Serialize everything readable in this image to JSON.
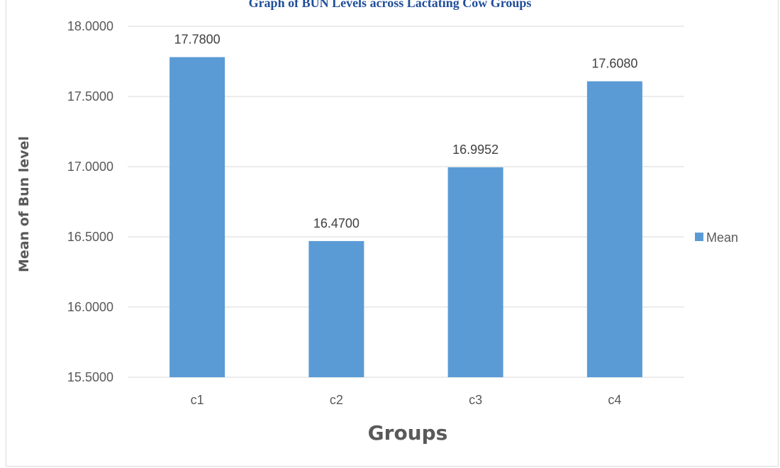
{
  "chart_data": {
    "type": "bar",
    "title": "Graph of BUN Levels across Lactating Cow Groups",
    "xlabel": "Groups",
    "ylabel": "Mean of Bun level",
    "categories": [
      "c1",
      "c2",
      "c3",
      "c4"
    ],
    "series": [
      {
        "name": "Mean",
        "values": [
          17.78,
          16.47,
          16.9952,
          17.608
        ],
        "labels": [
          "17.7800",
          "16.4700",
          "16.9952",
          "17.6080"
        ]
      }
    ],
    "ylim": [
      15.5,
      18.0
    ],
    "yticks": [
      "15.5000",
      "16.0000",
      "16.5000",
      "17.0000",
      "17.5000",
      "18.0000"
    ],
    "ytick_values": [
      15.5,
      16.0,
      16.5,
      17.0,
      17.5,
      18.0
    ],
    "grid": true,
    "legend_position": "right",
    "colors": {
      "bar": "#5b9bd5",
      "grid": "#d9d9d9",
      "title": "#1f4e9a"
    }
  }
}
